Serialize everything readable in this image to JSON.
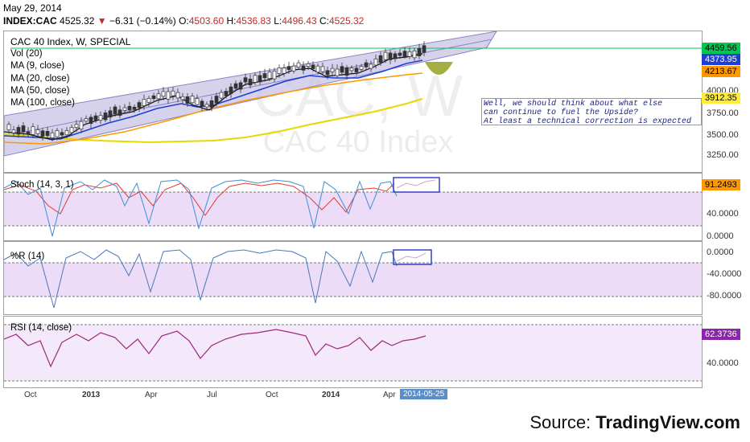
{
  "header": {
    "date": "May 29, 2014",
    "symbol": "INDEX:CAC",
    "last": "4525.32",
    "change": "−6.31 (−0.14%)",
    "open_label": "O:",
    "open": "4503.60",
    "high_label": "H:",
    "high": "4536.83",
    "low_label": "L:",
    "low": "4496.43",
    "close_label": "C:",
    "close": "4525.32"
  },
  "main_pane": {
    "title": "CAC 40 Index, W, SPECIAL",
    "watermark_big": "CAC, W",
    "watermark_small": "CAC 40 Index",
    "legend": [
      "Vol (20)",
      "MA (9, close)",
      "MA (20, close)",
      "MA (50, close)",
      "MA (100, close)"
    ],
    "scale": [
      "4000.00",
      "3750.00",
      "3500.00",
      "3250.00"
    ],
    "tags": [
      {
        "value": "4459.56",
        "color": "#00c853"
      },
      {
        "value": "4373.95",
        "color": "#1e3fd6"
      },
      {
        "value": "4213.67",
        "color": "#ff9800"
      },
      {
        "value": "3912.35",
        "color": "#ffeb3b"
      }
    ],
    "note_lines": [
      "Well, we should think about what else",
      "can continue to fuel the Upside?",
      "At least a technical correction is expected"
    ]
  },
  "stoch_pane": {
    "title": "Stoch (14, 3, 1)",
    "scale": [
      "40.0000",
      "0.0000"
    ],
    "tag": "91.2493",
    "tag_color": "#ff9800"
  },
  "wr_pane": {
    "title": "%R (14)",
    "scale": [
      "0.0000",
      "-40.0000",
      "-80.0000"
    ]
  },
  "rsi_pane": {
    "title": "RSI (14, close)",
    "scale": [
      "40.0000"
    ],
    "tag": "62.3736",
    "tag_color": "#8e24aa"
  },
  "time_axis": {
    "ticks": [
      {
        "label": "Oct",
        "bold": false
      },
      {
        "label": "2013",
        "bold": true
      },
      {
        "label": "Apr",
        "bold": false
      },
      {
        "label": "Jul",
        "bold": false
      },
      {
        "label": "Oct",
        "bold": false
      },
      {
        "label": "2014",
        "bold": true
      },
      {
        "label": "Apr",
        "bold": false
      }
    ],
    "cursor_date": "2014-05-25"
  },
  "source": {
    "prefix": "Source: ",
    "brand": "TradingView.com"
  },
  "colors": {
    "channel_fill": "#c9c3e6",
    "channel_edge": "#8c84c4",
    "ma9": "#111111",
    "ma20": "#1e3fd6",
    "ma50": "#ff9800",
    "ma100": "#e6d800",
    "stoch_k": "#3f8fd8",
    "stoch_d": "#e53935",
    "osc_fill": "#ecdcf7",
    "rsi": "#a0267a",
    "wr": "#4a78b8",
    "highlight_box": "#3340c9",
    "resistance_line": "#00c853"
  }
}
